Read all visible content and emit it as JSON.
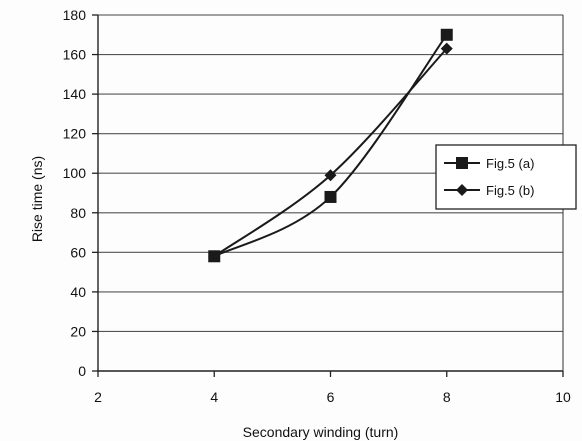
{
  "chart_data": {
    "type": "line",
    "title": "",
    "xlabel": "Secondary winding (turn)",
    "ylabel": "Rise time (ns)",
    "xlim": [
      2,
      10
    ],
    "ylim": [
      0,
      180
    ],
    "x_ticks": [
      "2",
      "4",
      "6",
      "8",
      "10"
    ],
    "y_ticks": [
      "0",
      "20",
      "40",
      "60",
      "80",
      "100",
      "120",
      "140",
      "160",
      "180"
    ],
    "grid": "horizontal",
    "legend_position": "right",
    "series": [
      {
        "name": "Fig.5 (a)",
        "marker": "square",
        "color": "#1a1a1a",
        "x": [
          4,
          6,
          8
        ],
        "y": [
          58,
          88,
          170
        ]
      },
      {
        "name": "Fig.5 (b)",
        "marker": "diamond",
        "color": "#1a1a1a",
        "x": [
          4,
          6,
          8
        ],
        "y": [
          58,
          99,
          163
        ]
      }
    ]
  }
}
